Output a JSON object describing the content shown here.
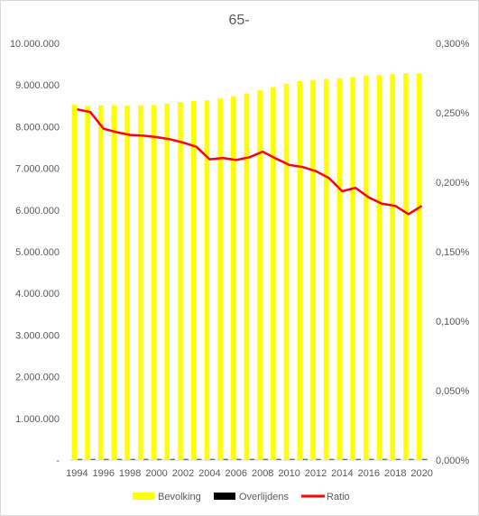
{
  "chart_data": {
    "type": "bar",
    "title": "65-",
    "x": [
      1994,
      1995,
      1996,
      1997,
      1998,
      1999,
      2000,
      2001,
      2002,
      2003,
      2004,
      2005,
      2006,
      2007,
      2008,
      2009,
      2010,
      2011,
      2012,
      2013,
      2014,
      2015,
      2016,
      2017,
      2018,
      2019,
      2020
    ],
    "x_tick_labels": [
      "1994",
      "1996",
      "1998",
      "2000",
      "2002",
      "2004",
      "2006",
      "2008",
      "2010",
      "2012",
      "2014",
      "2016",
      "2018",
      "2020"
    ],
    "y_left": {
      "ylim": [
        0,
        10000000
      ],
      "tick_labels": [
        "-",
        "1.000.000",
        "2.000.000",
        "3.000.000",
        "4.000.000",
        "5.000.000",
        "6.000.000",
        "7.000.000",
        "8.000.000",
        "9.000.000",
        "10.000.000"
      ]
    },
    "y_right": {
      "ylim": [
        0,
        0.003
      ],
      "tick_labels": [
        "0,000%",
        "0,050%",
        "0,100%",
        "0,150%",
        "0,200%",
        "0,250%",
        "0,300%"
      ]
    },
    "series": [
      {
        "name": "Bevolking",
        "kind": "bar",
        "axis": "left",
        "color": "#ffff00",
        "values": [
          8520000,
          8500000,
          8510000,
          8520000,
          8510000,
          8510000,
          8520000,
          8550000,
          8590000,
          8610000,
          8630000,
          8680000,
          8730000,
          8800000,
          8870000,
          8950000,
          9030000,
          9090000,
          9120000,
          9150000,
          9160000,
          9190000,
          9220000,
          9240000,
          9260000,
          9280000,
          9280000
        ]
      },
      {
        "name": "Overlijdens",
        "kind": "bar",
        "axis": "left",
        "color": "#000000",
        "values": [
          21500,
          21300,
          20300,
          20200,
          20000,
          19900,
          19900,
          19700,
          19600,
          19500,
          18700,
          18900,
          18900,
          19500,
          19700,
          19500,
          19100,
          19200,
          19000,
          18700,
          17800,
          18100,
          17500,
          17000,
          17200,
          16500,
          17000
        ]
      },
      {
        "name": "Ratio",
        "kind": "line",
        "axis": "right",
        "color": "#ff0000",
        "values": [
          0.002525,
          0.002505,
          0.002385,
          0.00236,
          0.00234,
          0.002335,
          0.002325,
          0.00231,
          0.002285,
          0.002255,
          0.002165,
          0.002175,
          0.00216,
          0.00218,
          0.00222,
          0.00217,
          0.002125,
          0.00211,
          0.00208,
          0.00203,
          0.001935,
          0.00196,
          0.00189,
          0.001845,
          0.00183,
          0.00177,
          0.00183
        ]
      }
    ],
    "legend": [
      "Bevolking",
      "Overlijdens",
      "Ratio"
    ],
    "legend_position": "bottom",
    "grid": false
  }
}
